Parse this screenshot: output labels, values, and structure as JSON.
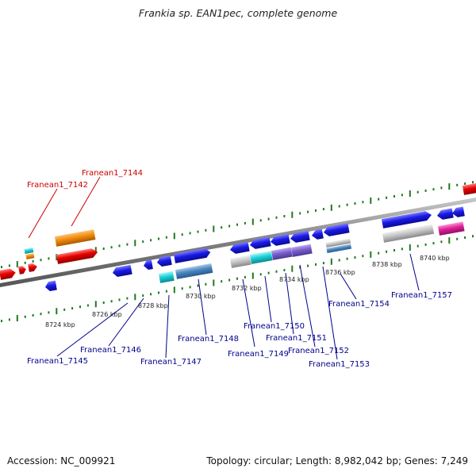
{
  "title": "Frankia sp. EAN1pec, complete genome",
  "footer": {
    "accession": "Accession: NC_009921",
    "stats": "Topology: circular; Length: 8,982,042 bp; Genes: 7,249"
  },
  "scale_labels": [
    "8724 kbp",
    "8726 kbp",
    "8728 kbp",
    "8730 kbp",
    "8732 kbp",
    "8734 kbp",
    "8736 kbp",
    "8738 kbp",
    "8740 kbp"
  ],
  "gene_labels": [
    "Franean1_7142",
    "Franean1_7144",
    "Franean1_7145",
    "Franean1_7146",
    "Franean1_7147",
    "Franean1_7148",
    "Franean1_7149",
    "Franean1_7150",
    "Franean1_7151",
    "Franean1_7152",
    "Franean1_7153",
    "Franean1_7154",
    "Franean1_7157"
  ],
  "colors": {
    "backbone": "#888888",
    "tick": "#1f7a1f",
    "cds_blue": "#1a1ae6",
    "rna_red": "#e60000",
    "orange": "#f28c0f",
    "cyan": "#18cfd6",
    "steelblue": "#4a86c0",
    "purple": "#7a5ccc",
    "gray": "#c4c4c4",
    "magenta": "#e0209a",
    "label_blue": "#00008b",
    "label_red": "#cc0000"
  }
}
